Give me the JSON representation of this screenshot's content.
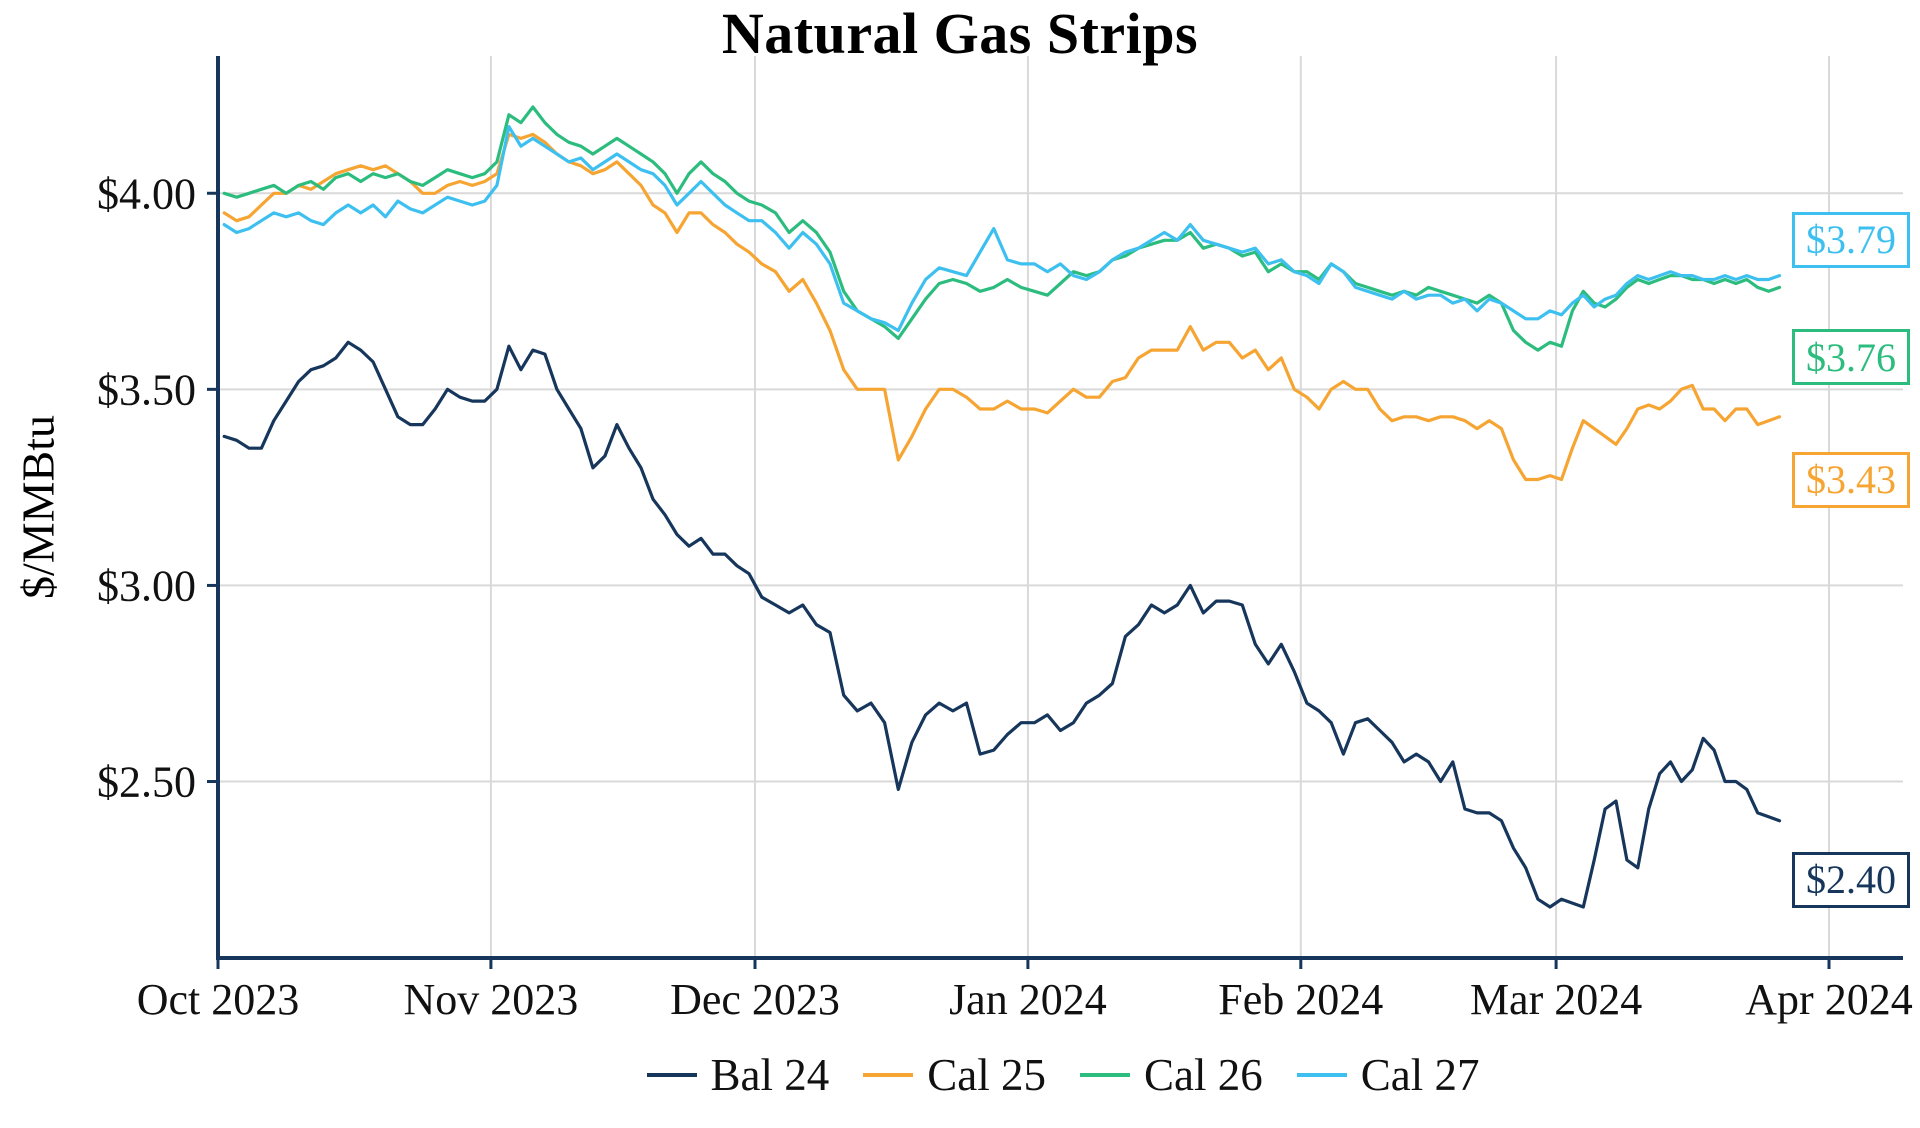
{
  "title": "Natural Gas Strips",
  "y_axis_label": "$/MMBtu",
  "colors": {
    "axis": "#16365c",
    "grid": "#d9d9d9",
    "text": "#111111"
  },
  "chart_data": {
    "type": "line",
    "title": "Natural Gas Strips",
    "xlabel": "",
    "ylabel": "$/MMBtu",
    "grid": true,
    "legend_position": "bottom",
    "ylim": [
      2.05,
      4.35
    ],
    "y_ticks": [
      2.5,
      3.0,
      3.5,
      4.0
    ],
    "y_tick_labels": [
      "$2.50",
      "$3.00",
      "$3.50",
      "$4.00"
    ],
    "x_tick_labels": [
      "Oct 2023",
      "Nov 2023",
      "Dec 2023",
      "Jan 2024",
      "Feb 2024",
      "Mar 2024",
      "Apr 2024"
    ],
    "points_per_month": [
      22,
      22,
      20,
      21,
      21,
      21
    ],
    "series": [
      {
        "name": "Bal 24",
        "color": "#16365c",
        "end_label": "$2.40",
        "values": [
          3.38,
          3.37,
          3.35,
          3.35,
          3.42,
          3.47,
          3.52,
          3.55,
          3.56,
          3.58,
          3.62,
          3.6,
          3.57,
          3.5,
          3.43,
          3.41,
          3.41,
          3.45,
          3.5,
          3.48,
          3.47,
          3.47,
          3.5,
          3.61,
          3.55,
          3.6,
          3.59,
          3.5,
          3.45,
          3.4,
          3.3,
          3.33,
          3.41,
          3.35,
          3.3,
          3.22,
          3.18,
          3.13,
          3.1,
          3.12,
          3.08,
          3.08,
          3.05,
          3.03,
          2.97,
          2.95,
          2.93,
          2.95,
          2.9,
          2.88,
          2.72,
          2.68,
          2.7,
          2.65,
          2.48,
          2.6,
          2.67,
          2.7,
          2.68,
          2.7,
          2.57,
          2.58,
          2.62,
          2.65,
          2.65,
          2.67,
          2.63,
          2.65,
          2.7,
          2.72,
          2.75,
          2.87,
          2.9,
          2.95,
          2.93,
          2.95,
          3.0,
          2.93,
          2.96,
          2.96,
          2.95,
          2.85,
          2.8,
          2.85,
          2.78,
          2.7,
          2.68,
          2.65,
          2.57,
          2.65,
          2.66,
          2.63,
          2.6,
          2.55,
          2.57,
          2.55,
          2.5,
          2.55,
          2.43,
          2.42,
          2.42,
          2.4,
          2.33,
          2.28,
          2.2,
          2.18,
          2.2,
          2.19,
          2.18,
          2.3,
          2.43,
          2.45,
          2.3,
          2.28,
          2.43,
          2.52,
          2.55,
          2.5,
          2.53,
          2.61,
          2.58,
          2.5,
          2.5,
          2.48,
          2.42,
          2.41,
          2.4
        ]
      },
      {
        "name": "Cal 25",
        "color": "#f6a432",
        "end_label": "$3.43",
        "values": [
          3.95,
          3.93,
          3.94,
          3.97,
          4.0,
          4.0,
          4.02,
          4.01,
          4.03,
          4.05,
          4.06,
          4.07,
          4.06,
          4.07,
          4.05,
          4.03,
          4.0,
          4.0,
          4.02,
          4.03,
          4.02,
          4.03,
          4.05,
          4.15,
          4.14,
          4.15,
          4.13,
          4.1,
          4.08,
          4.07,
          4.05,
          4.06,
          4.08,
          4.05,
          4.02,
          3.97,
          3.95,
          3.9,
          3.95,
          3.95,
          3.92,
          3.9,
          3.87,
          3.85,
          3.82,
          3.8,
          3.75,
          3.78,
          3.72,
          3.65,
          3.55,
          3.5,
          3.5,
          3.5,
          3.32,
          3.38,
          3.45,
          3.5,
          3.5,
          3.48,
          3.45,
          3.45,
          3.47,
          3.45,
          3.45,
          3.44,
          3.47,
          3.5,
          3.48,
          3.48,
          3.52,
          3.53,
          3.58,
          3.6,
          3.6,
          3.6,
          3.66,
          3.6,
          3.62,
          3.62,
          3.58,
          3.6,
          3.55,
          3.58,
          3.5,
          3.48,
          3.45,
          3.5,
          3.52,
          3.5,
          3.5,
          3.45,
          3.42,
          3.43,
          3.43,
          3.42,
          3.43,
          3.43,
          3.42,
          3.4,
          3.42,
          3.4,
          3.32,
          3.27,
          3.27,
          3.28,
          3.27,
          3.35,
          3.42,
          3.4,
          3.38,
          3.36,
          3.4,
          3.45,
          3.46,
          3.45,
          3.47,
          3.5,
          3.51,
          3.45,
          3.45,
          3.42,
          3.45,
          3.45,
          3.41,
          3.42,
          3.43
        ]
      },
      {
        "name": "Cal 26",
        "color": "#2cbd7e",
        "end_label": "$3.76",
        "values": [
          4.0,
          3.99,
          4.0,
          4.01,
          4.02,
          4.0,
          4.02,
          4.03,
          4.01,
          4.04,
          4.05,
          4.03,
          4.05,
          4.04,
          4.05,
          4.03,
          4.02,
          4.04,
          4.06,
          4.05,
          4.04,
          4.05,
          4.08,
          4.2,
          4.18,
          4.22,
          4.18,
          4.15,
          4.13,
          4.12,
          4.1,
          4.12,
          4.14,
          4.12,
          4.1,
          4.08,
          4.05,
          4.0,
          4.05,
          4.08,
          4.05,
          4.03,
          4.0,
          3.98,
          3.97,
          3.95,
          3.9,
          3.93,
          3.9,
          3.85,
          3.75,
          3.7,
          3.68,
          3.66,
          3.63,
          3.68,
          3.73,
          3.77,
          3.78,
          3.77,
          3.75,
          3.76,
          3.78,
          3.76,
          3.75,
          3.74,
          3.77,
          3.8,
          3.79,
          3.8,
          3.83,
          3.84,
          3.86,
          3.87,
          3.88,
          3.88,
          3.9,
          3.86,
          3.87,
          3.86,
          3.84,
          3.85,
          3.8,
          3.82,
          3.8,
          3.8,
          3.78,
          3.82,
          3.8,
          3.77,
          3.76,
          3.75,
          3.74,
          3.75,
          3.74,
          3.76,
          3.75,
          3.74,
          3.73,
          3.72,
          3.74,
          3.72,
          3.65,
          3.62,
          3.6,
          3.62,
          3.61,
          3.7,
          3.75,
          3.72,
          3.71,
          3.73,
          3.76,
          3.78,
          3.77,
          3.78,
          3.79,
          3.79,
          3.78,
          3.78,
          3.77,
          3.78,
          3.77,
          3.78,
          3.76,
          3.75,
          3.76
        ]
      },
      {
        "name": "Cal 27",
        "color": "#3dc0f0",
        "end_label": "$3.79",
        "values": [
          3.92,
          3.9,
          3.91,
          3.93,
          3.95,
          3.94,
          3.95,
          3.93,
          3.92,
          3.95,
          3.97,
          3.95,
          3.97,
          3.94,
          3.98,
          3.96,
          3.95,
          3.97,
          3.99,
          3.98,
          3.97,
          3.98,
          4.02,
          4.17,
          4.12,
          4.14,
          4.12,
          4.1,
          4.08,
          4.09,
          4.06,
          4.08,
          4.1,
          4.08,
          4.06,
          4.05,
          4.02,
          3.97,
          4.0,
          4.03,
          4.0,
          3.97,
          3.95,
          3.93,
          3.93,
          3.9,
          3.86,
          3.9,
          3.87,
          3.82,
          3.72,
          3.7,
          3.68,
          3.67,
          3.65,
          3.72,
          3.78,
          3.81,
          3.8,
          3.79,
          3.85,
          3.91,
          3.83,
          3.82,
          3.82,
          3.8,
          3.82,
          3.79,
          3.78,
          3.8,
          3.83,
          3.85,
          3.86,
          3.88,
          3.9,
          3.88,
          3.92,
          3.88,
          3.87,
          3.86,
          3.85,
          3.86,
          3.82,
          3.83,
          3.8,
          3.79,
          3.77,
          3.82,
          3.8,
          3.76,
          3.75,
          3.74,
          3.73,
          3.75,
          3.73,
          3.74,
          3.74,
          3.72,
          3.73,
          3.7,
          3.73,
          3.72,
          3.7,
          3.68,
          3.68,
          3.7,
          3.69,
          3.72,
          3.74,
          3.71,
          3.73,
          3.74,
          3.77,
          3.79,
          3.78,
          3.79,
          3.8,
          3.79,
          3.79,
          3.78,
          3.78,
          3.79,
          3.78,
          3.79,
          3.78,
          3.78,
          3.79
        ]
      }
    ]
  }
}
